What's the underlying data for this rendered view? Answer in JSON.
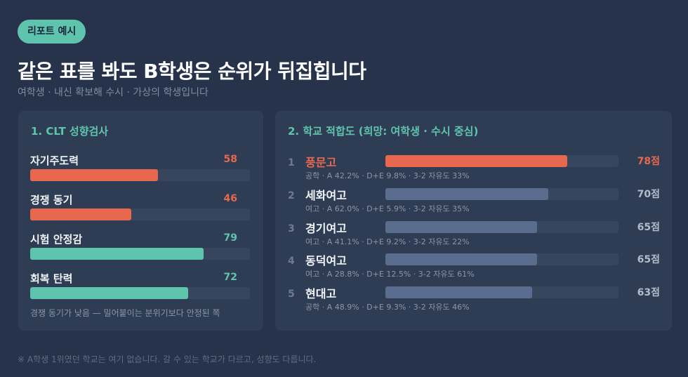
{
  "badge": "리포트 예시",
  "title": "같은 표를 봐도 B학생은 순위가 뒤집힙니다",
  "subtitle": "여학생 · 내신 확보해 수시 · 가상의 학생입니다",
  "clt": {
    "heading": "1. CLT 성향검사",
    "items": [
      {
        "label": "자기주도력",
        "value": "58",
        "fraction": 0.58,
        "color": "#e8684f"
      },
      {
        "label": "경쟁 동기",
        "value": "46",
        "fraction": 0.46,
        "color": "#e8684f"
      },
      {
        "label": "시험 안정감",
        "value": "79",
        "fraction": 0.79,
        "color": "#5fc4ae"
      },
      {
        "label": "회복 탄력",
        "value": "72",
        "fraction": 0.72,
        "color": "#5fc4ae"
      }
    ],
    "note": "경쟁 동기가 낮음 — 밀어붙이는 분위기보다 안정된 쪽"
  },
  "fit": {
    "heading": "2. 학교 적합도 (희망: 여학생 · 수시 중심)",
    "schools": [
      {
        "rank": "1",
        "name": "풍문고",
        "detail": "공학 · A 42.2% · D+E 9.8% · 3-2 자유도 33%",
        "score": "78점",
        "fraction": 0.78,
        "highlight": true
      },
      {
        "rank": "2",
        "name": "세화여고",
        "detail": "여고 · A 62.0% · D+E 5.9% · 3-2 자유도 35%",
        "score": "70점",
        "fraction": 0.7,
        "highlight": false
      },
      {
        "rank": "3",
        "name": "경기여고",
        "detail": "여고 · A 41.1% · D+E 9.2% · 3-2 자유도 22%",
        "score": "65점",
        "fraction": 0.65,
        "highlight": false
      },
      {
        "rank": "4",
        "name": "동덕여고",
        "detail": "여고 · A 28.8% · D+E 12.5% · 3-2 자유도 61%",
        "score": "65점",
        "fraction": 0.65,
        "highlight": false
      },
      {
        "rank": "5",
        "name": "현대고",
        "detail": "공학 · A 48.9% · D+E 9.3% · 3-2 자유도 46%",
        "score": "63점",
        "fraction": 0.63,
        "highlight": false
      }
    ],
    "colors": {
      "highlight": "#e8684f",
      "normal_bar": "#5b6d8e",
      "normal_text": "#f1f4f8",
      "normal_score": "#b3bccb"
    }
  },
  "footnote": "※ A학생 1위였던 학교는 여기 없습니다. 갈 수 있는 학교가 다르고, 성향도 다릅니다."
}
